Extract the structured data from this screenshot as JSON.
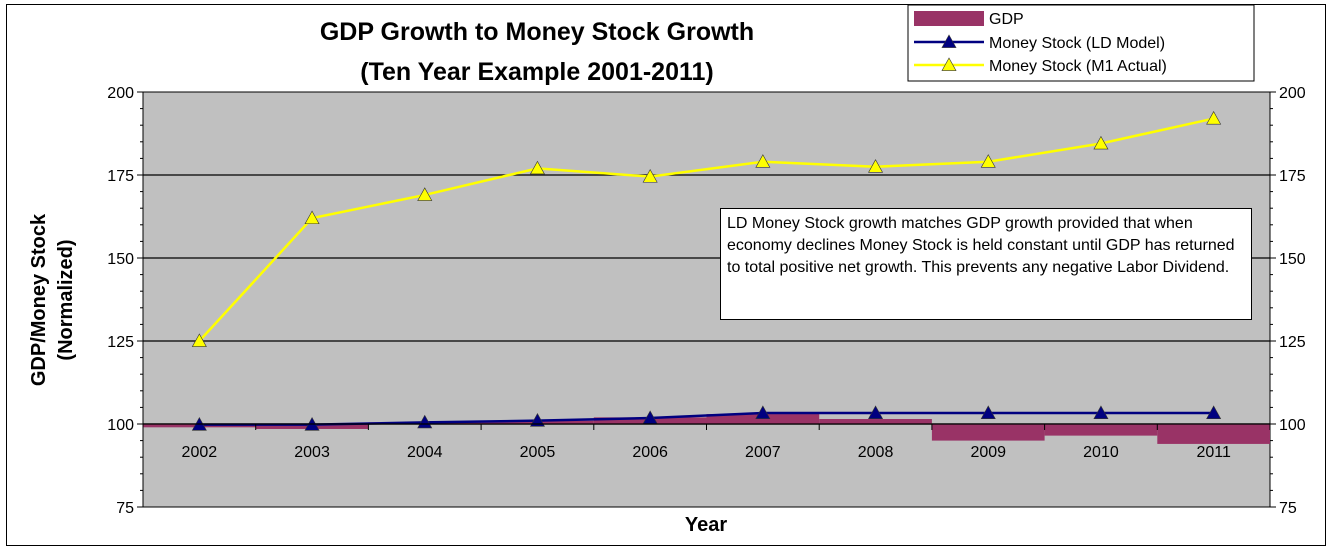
{
  "chart_data": {
    "type": "bar",
    "title": "GDP Growth to Money Stock Growth",
    "subtitle": "(Ten Year Example 2001-2011)",
    "xlabel": "Year",
    "ylabel": "GDP/Money Stock",
    "ylabel2": "(Normalized)",
    "ylim": [
      75,
      200
    ],
    "yticks": [
      75,
      100,
      125,
      150,
      175,
      200
    ],
    "y_baseline": 100,
    "categories": [
      "2002",
      "2003",
      "2004",
      "2005",
      "2006",
      "2007",
      "2008",
      "2009",
      "2010",
      "2011"
    ],
    "grid": "horizontal",
    "secondary_y_axis": true,
    "legend_position": "top-right",
    "series": [
      {
        "name": "GDP",
        "type": "bar",
        "color": "#993366",
        "values": [
          99,
          98.5,
          100.5,
          101,
          102,
          103,
          101.5,
          95,
          96.5,
          94
        ]
      },
      {
        "name": "Money Stock (LD Model)",
        "type": "line",
        "marker": "triangle",
        "color": "#000080",
        "values": [
          99.8,
          99.8,
          100.5,
          101,
          101.8,
          103.3,
          103.3,
          103.3,
          103.3,
          103.3
        ]
      },
      {
        "name": "Money Stock (M1 Actual)",
        "type": "line",
        "marker": "triangle",
        "color": "#FFFF00",
        "values": [
          125,
          162,
          169,
          177,
          174.5,
          179,
          177.5,
          179,
          184.5,
          192
        ]
      }
    ],
    "annotation": "LD Money Stock growth matches GDP growth provided that when economy declines Money Stock is held constant until GDP has returned to total positive net growth. This prevents any negative Labor Dividend."
  },
  "colors": {
    "plot_background": "#C0C0C0",
    "gridline": "#000000"
  }
}
